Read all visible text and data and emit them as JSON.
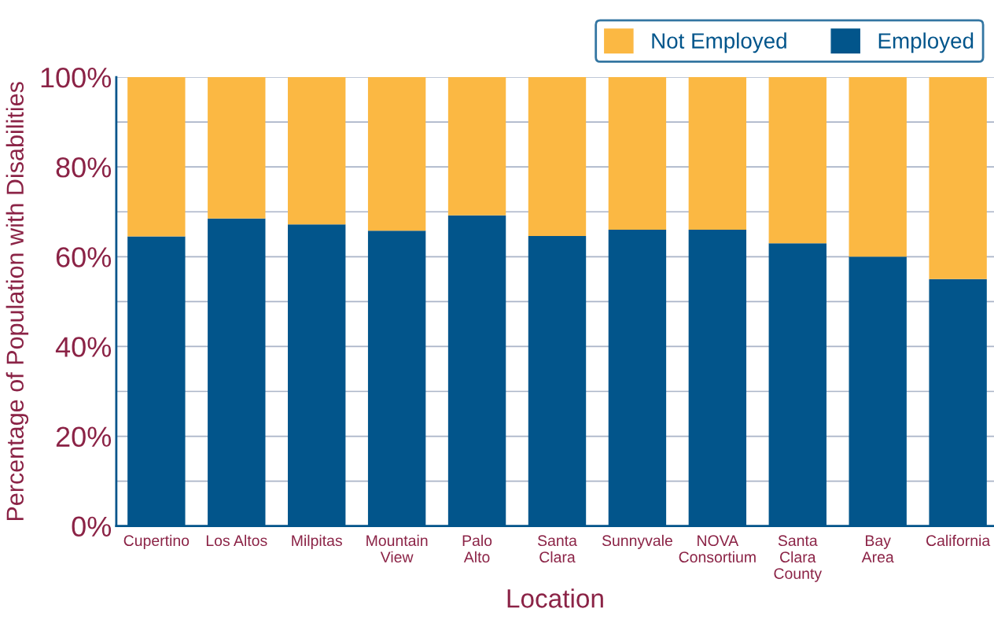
{
  "chart_data": {
    "type": "bar",
    "stacked": true,
    "xlabel": "Location",
    "ylabel": "Percentage of Population with Disabilities",
    "categories": [
      "Cupertino",
      "Los Altos",
      "Milpitas",
      "Mountain\nView",
      "Palo\nAlto",
      "Santa\nClara",
      "Sunnyvale",
      "NOVA\nConsortium",
      "Santa\nClara\nCounty",
      "Bay\nArea",
      "California"
    ],
    "series": [
      {
        "name": "Employed",
        "color": "#02558b",
        "values": [
          64.5,
          68.5,
          67.2,
          65.8,
          69.2,
          64.6,
          66.0,
          66.0,
          63.0,
          60.0,
          55.0
        ]
      },
      {
        "name": "Not Employed",
        "color": "#fbb843",
        "values": [
          35.5,
          31.5,
          32.8,
          34.2,
          30.8,
          35.4,
          34.0,
          34.0,
          37.0,
          40.0,
          45.0
        ]
      }
    ],
    "ylim": [
      0,
      100
    ],
    "yticks": [
      {
        "value": 0,
        "label": "0%"
      },
      {
        "value": 10,
        "label": null
      },
      {
        "value": 20,
        "label": "20%"
      },
      {
        "value": 30,
        "label": null
      },
      {
        "value": 40,
        "label": "40%"
      },
      {
        "value": 50,
        "label": null
      },
      {
        "value": 60,
        "label": "60%"
      },
      {
        "value": 70,
        "label": null
      },
      {
        "value": 80,
        "label": "80%"
      },
      {
        "value": 90,
        "label": null
      },
      {
        "value": 100,
        "label": "100%"
      }
    ],
    "grid": "y",
    "legend": "top right"
  }
}
